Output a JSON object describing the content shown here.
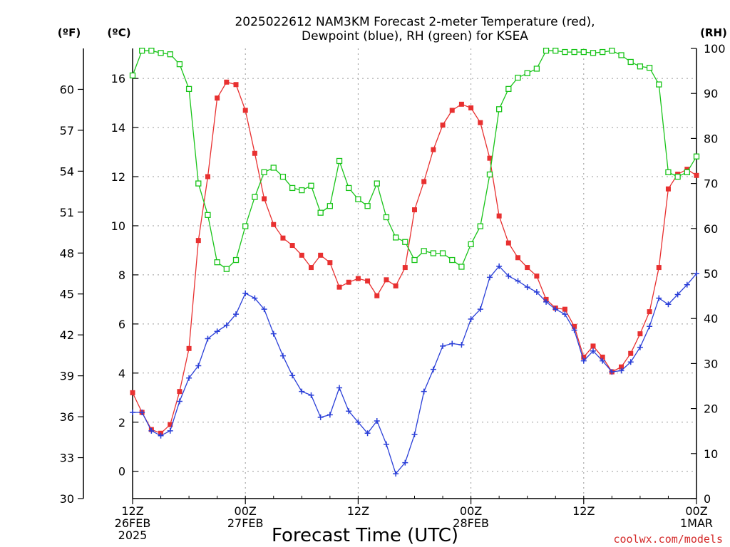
{
  "chart_data": {
    "type": "line",
    "title_line1": "2025022612 NAM3KM Forecast 2-meter Temperature (red),",
    "title_line2": "Dewpoint (blue), RH (green) for KSEA",
    "xlabel": "Forecast Time (UTC)",
    "credit": "coolwx.com/models",
    "unit_f": "(ºF)",
    "unit_c": "(ºC)",
    "unit_rh": "(RH)",
    "x_ticks": [
      {
        "hour": 0,
        "l1": "12Z",
        "l2": "26FEB",
        "l3": "2025"
      },
      {
        "hour": 12,
        "l1": "00Z",
        "l2": "27FEB",
        "l3": ""
      },
      {
        "hour": 24,
        "l1": "12Z",
        "l2": "",
        "l3": ""
      },
      {
        "hour": 36,
        "l1": "00Z",
        "l2": "28FEB",
        "l3": ""
      },
      {
        "hour": 48,
        "l1": "12Z",
        "l2": "",
        "l3": ""
      },
      {
        "hour": 60,
        "l1": "00Z",
        "l2": "1MAR",
        "l3": ""
      }
    ],
    "xlim": [
      0,
      60
    ],
    "ylim_c": [
      -1.111,
      17.222
    ],
    "ylim_f": [
      30,
      63
    ],
    "ylim_rh": [
      0,
      100
    ],
    "yticks_c": [
      "0",
      "2",
      "4",
      "6",
      "8",
      "10",
      "12",
      "14",
      "16"
    ],
    "yticks_f": [
      "30",
      "33",
      "36",
      "39",
      "42",
      "45",
      "48",
      "51",
      "54",
      "57",
      "60"
    ],
    "yticks_rh": [
      "0",
      "10",
      "20",
      "30",
      "40",
      "50",
      "60",
      "70",
      "80",
      "90",
      "100"
    ],
    "grid": true,
    "colors": {
      "temperature": "#e83030",
      "dewpoint": "#2a3fd8",
      "rh": "#19c419"
    },
    "series": [
      {
        "key": "temperature",
        "axis": "c",
        "marker": "filled-square",
        "values": [
          3.2,
          2.4,
          1.7,
          1.55,
          1.9,
          3.25,
          5.0,
          9.4,
          12.0,
          15.2,
          15.85,
          15.75,
          14.7,
          12.95,
          11.1,
          10.05,
          9.5,
          9.2,
          8.8,
          8.3,
          8.8,
          8.5,
          7.5,
          7.7,
          7.85,
          7.75,
          7.15,
          7.8,
          7.55,
          8.3,
          10.65,
          11.8,
          13.1,
          14.1,
          14.7,
          14.95,
          14.8,
          14.2,
          12.75,
          10.4,
          9.3,
          8.7,
          8.3,
          7.95,
          7.0,
          6.65,
          6.6,
          5.9,
          4.65,
          5.1,
          4.65,
          4.05,
          4.25,
          4.8,
          5.6,
          6.5,
          8.3,
          11.5,
          12.1,
          12.3,
          12.05
        ]
      },
      {
        "key": "dewpoint",
        "axis": "c",
        "marker": "plus",
        "values": [
          2.4,
          2.4,
          1.65,
          1.45,
          1.65,
          2.85,
          3.8,
          4.3,
          5.4,
          5.7,
          5.95,
          6.4,
          7.25,
          7.05,
          6.6,
          5.6,
          4.7,
          3.9,
          3.25,
          3.1,
          2.2,
          2.3,
          3.4,
          2.45,
          2.0,
          1.55,
          2.05,
          1.1,
          -0.1,
          0.35,
          1.5,
          3.25,
          4.15,
          5.1,
          5.2,
          5.15,
          6.2,
          6.6,
          7.9,
          8.35,
          7.95,
          7.75,
          7.5,
          7.3,
          6.9,
          6.6,
          6.4,
          5.75,
          4.5,
          4.9,
          4.5,
          4.05,
          4.1,
          4.45,
          5.05,
          5.9,
          7.05,
          6.8,
          7.2,
          7.6,
          8.05
        ]
      },
      {
        "key": "rh",
        "axis": "rh",
        "marker": "open-square",
        "values": [
          94,
          99.5,
          99.5,
          99,
          98.7,
          96.5,
          91,
          70,
          63,
          52.5,
          51,
          53,
          60.5,
          67,
          72.5,
          73.5,
          71.5,
          69,
          68.5,
          69.5,
          63.5,
          65,
          75,
          69,
          66.5,
          65,
          70,
          62.5,
          58,
          57,
          53,
          55,
          54.5,
          54.5,
          53,
          51.5,
          56.5,
          60.5,
          72,
          86.5,
          91,
          93.5,
          94.5,
          95.5,
          99.5,
          99.5,
          99.2,
          99.2,
          99.2,
          99,
          99.2,
          99.5,
          98.5,
          97,
          96,
          95.7,
          92,
          72.5,
          71.5,
          72.5,
          76
        ]
      }
    ]
  }
}
